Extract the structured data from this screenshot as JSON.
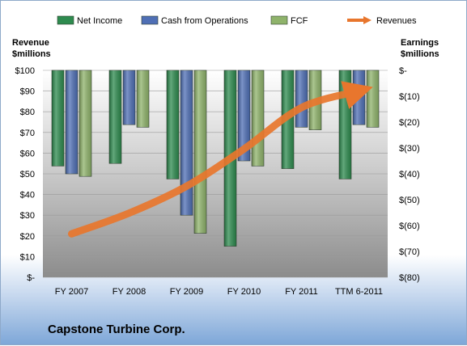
{
  "company": "Capstone Turbine Corp.",
  "chart_data": {
    "type": "bar",
    "categories": [
      "FY 2007",
      "FY 2008",
      "FY 2009",
      "FY 2010",
      "FY 2011",
      "TTM 6-2011"
    ],
    "left_axis": {
      "title_line1": "Revenue",
      "title_line2": "$millions",
      "ylim": [
        0,
        100
      ],
      "ticks": [
        "$-",
        "$10",
        "$20",
        "$30",
        "$40",
        "$50",
        "$60",
        "$70",
        "$80",
        "$90",
        "$100"
      ]
    },
    "right_axis": {
      "title_line1": "Earnings",
      "title_line2": "$millions",
      "ylim": [
        -80,
        0
      ],
      "ticks": [
        "$(80)",
        "$(70)",
        "$(60)",
        "$(50)",
        "$(40)",
        "$(30)",
        "$(20)",
        "$(10)",
        "$-"
      ]
    },
    "series": [
      {
        "name": "Net Income",
        "axis": "right",
        "color": "#2e8b4f",
        "values": [
          -37,
          -36,
          -42,
          -68,
          -38,
          -42
        ]
      },
      {
        "name": "Cash from Operations",
        "axis": "right",
        "color": "#4f6fb5",
        "values": [
          -40,
          -21,
          -56,
          -35,
          -22,
          -21
        ]
      },
      {
        "name": "FCF",
        "axis": "right",
        "color": "#8fb36b",
        "values": [
          -41,
          -22,
          -63,
          -37,
          -23,
          -22
        ]
      },
      {
        "name": "Revenues",
        "axis": "left",
        "type": "line",
        "color": "#e8762d",
        "values": [
          21,
          31,
          44,
          62,
          82,
          90
        ]
      }
    ],
    "grid": true,
    "legend_position": "top"
  }
}
